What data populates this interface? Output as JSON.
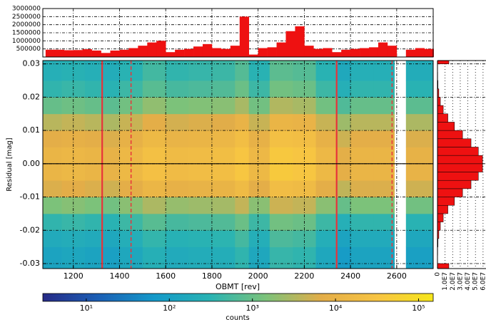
{
  "chart_data": [
    {
      "type": "heatmap",
      "x_label": "OBMT [rev]",
      "y_label": "Residual [mag]",
      "xlim": [
        1068,
        2758
      ],
      "ylim": [
        -0.0315,
        0.031
      ],
      "xticks": [
        1200,
        1400,
        1600,
        1800,
        2000,
        2200,
        2400,
        2600
      ],
      "yticks": [
        -0.03,
        -0.02,
        -0.01,
        {
          "value": 0,
          "label": "0.00"
        },
        0.01,
        0.02,
        0.03
      ],
      "grid": true,
      "x_edges": [
        1068,
        1150,
        1250,
        1320,
        1400,
        1500,
        1600,
        1700,
        1800,
        1900,
        1960,
        2050,
        2150,
        2250,
        2340,
        2400,
        2500,
        2590,
        2640,
        2758
      ],
      "y_edges": [
        -0.0315,
        -0.025,
        -0.02,
        -0.015,
        -0.01,
        -0.005,
        0,
        0.005,
        0.01,
        0.015,
        0.02,
        0.025,
        0.031
      ],
      "z": [
        [
          120,
          180,
          360,
          1440,
          6000,
          12000,
          11400,
          7200,
          3600,
          960,
          360,
          240
        ],
        [
          140,
          210,
          420,
          1680,
          7000,
          14000,
          13300,
          8400,
          4200,
          1120,
          420,
          280
        ],
        [
          120,
          180,
          360,
          1440,
          6000,
          12000,
          11400,
          7200,
          3600,
          960,
          360,
          240
        ],
        [
          100,
          150,
          300,
          1200,
          5000,
          10000,
          9500,
          6000,
          3000,
          800,
          300,
          200
        ],
        [
          150,
          225,
          450,
          1800,
          7500,
          15000,
          14250,
          9000,
          4500,
          1200,
          450,
          300
        ],
        [
          250,
          375,
          750,
          3000,
          12500,
          25000,
          23750,
          15000,
          7500,
          2000,
          750,
          500
        ],
        [
          180,
          270,
          540,
          2160,
          9000,
          18000,
          17100,
          10800,
          5400,
          1440,
          540,
          360
        ],
        [
          200,
          300,
          600,
          2400,
          10000,
          20000,
          19000,
          12000,
          6000,
          1600,
          600,
          400
        ],
        [
          220,
          330,
          660,
          2640,
          11000,
          22000,
          20900,
          13200,
          6600,
          1760,
          660,
          440
        ],
        [
          350,
          525,
          1050,
          4200,
          17500,
          35000,
          33250,
          21000,
          10500,
          2800,
          1050,
          700
        ],
        [
          150,
          225,
          450,
          1800,
          7500,
          15000,
          14250,
          9000,
          4500,
          1200,
          450,
          300
        ],
        [
          400,
          600,
          1200,
          4800,
          20000,
          40000,
          38000,
          24000,
          12000,
          3200,
          1200,
          800
        ],
        [
          350,
          525,
          1050,
          4200,
          17500,
          35000,
          33250,
          21000,
          10500,
          2800,
          1050,
          700
        ],
        [
          150,
          225,
          450,
          1800,
          7500,
          15000,
          14250,
          9000,
          4500,
          1200,
          450,
          300
        ],
        [
          80,
          120,
          240,
          960,
          4000,
          8000,
          7600,
          4800,
          2400,
          640,
          240,
          160
        ],
        [
          120,
          180,
          360,
          1440,
          6000,
          12000,
          11400,
          7200,
          3600,
          960,
          360,
          240
        ],
        [
          120,
          180,
          360,
          1440,
          6000,
          12000,
          11400,
          7200,
          3600,
          960,
          360,
          240
        ],
        [
          null,
          null,
          null,
          null,
          null,
          null,
          null,
          null,
          null,
          null,
          null,
          null
        ],
        [
          100,
          150,
          300,
          1200,
          5000,
          10000,
          9500,
          6000,
          3000,
          800,
          300,
          200
        ]
      ],
      "colorscale": [
        "#262a86",
        "#1b5fb5",
        "#1499c9",
        "#29b3b3",
        "#7cc27a",
        "#e3ad48",
        "#f7c443",
        "#f6e61b"
      ],
      "colorbar": {
        "label": "counts",
        "log": true,
        "lim": [
          3,
          150000
        ],
        "ticks": [
          {
            "value": 10,
            "label": "10¹"
          },
          {
            "value": 100,
            "label": "10²"
          },
          {
            "value": 1000,
            "label": "10³"
          },
          {
            "value": 10000,
            "label": "10⁴"
          },
          {
            "value": 100000,
            "label": "10⁵"
          }
        ]
      },
      "vlines_solid": [
        1325,
        2340
      ],
      "vlines_dashed": [
        1450,
        2580
      ],
      "vline_color": "#e8333a",
      "hline": 0
    },
    {
      "type": "histogram",
      "xlim": [
        1068,
        2758
      ],
      "ylim": [
        0,
        3000000
      ],
      "yticks": [
        500000,
        1000000,
        1500000,
        2000000,
        2500000,
        3000000
      ],
      "grid": true,
      "color": "#ee1111",
      "bins": [
        1080,
        1120,
        1160,
        1200,
        1240,
        1280,
        1320,
        1360,
        1400,
        1440,
        1480,
        1520,
        1560,
        1600,
        1640,
        1680,
        1720,
        1760,
        1800,
        1840,
        1880,
        1920,
        1960,
        2000,
        2040,
        2080,
        2120,
        2160,
        2200,
        2240,
        2280,
        2320,
        2360,
        2400,
        2440,
        2480,
        2520,
        2560,
        2600,
        2640,
        2680,
        2720,
        2760
      ],
      "values": [
        450000,
        450000,
        420000,
        430000,
        480000,
        400000,
        250000,
        400000,
        450000,
        550000,
        700000,
        900000,
        1000000,
        300000,
        450000,
        500000,
        650000,
        800000,
        550000,
        500000,
        700000,
        2500000,
        150000,
        550000,
        600000,
        900000,
        1600000,
        1900000,
        700000,
        500000,
        550000,
        300000,
        450000,
        500000,
        550000,
        600000,
        900000,
        700000,
        0,
        450000,
        550000,
        500000
      ]
    },
    {
      "type": "histogram-horizontal",
      "xlim": [
        0,
        62000000
      ],
      "ylim": [
        -0.0315,
        0.031
      ],
      "xticks": [
        0,
        {
          "value": 10000000,
          "label": "1.0E7"
        },
        {
          "value": 20000000,
          "label": "2.0E7"
        },
        {
          "value": 30000000,
          "label": "3.0E7"
        },
        {
          "value": 40000000,
          "label": "4.0E7"
        },
        {
          "value": 50000000,
          "label": "5.0E7"
        },
        {
          "value": 60000000,
          "label": "6.0E7"
        }
      ],
      "grid": true,
      "color": "#ee1111",
      "bins": [
        -0.0315,
        -0.03,
        -0.0275,
        -0.025,
        -0.0225,
        -0.02,
        -0.0175,
        -0.015,
        -0.0125,
        -0.01,
        -0.0075,
        -0.005,
        -0.0025,
        0,
        0.0025,
        0.005,
        0.0075,
        0.01,
        0.0125,
        0.015,
        0.0175,
        0.02,
        0.0225,
        0.025,
        0.0275,
        0.03,
        0.031
      ],
      "values": [
        15000000,
        100000,
        300000,
        700000,
        1800000,
        3800000,
        7600000,
        13700000,
        22300000,
        33000000,
        44200000,
        53800000,
        59300000,
        59300000,
        53800000,
        44200000,
        33000000,
        22300000,
        13700000,
        7600000,
        3800000,
        1800000,
        700000,
        300000,
        100000,
        15000000
      ]
    }
  ]
}
